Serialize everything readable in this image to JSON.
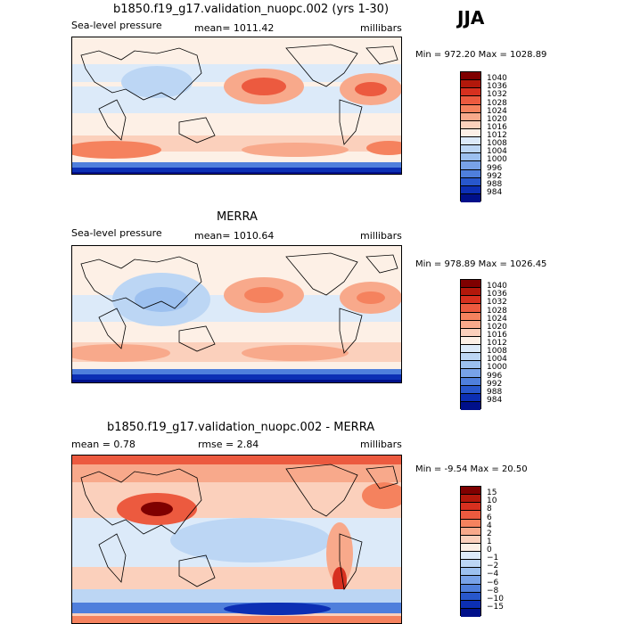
{
  "season": "JJA",
  "panels": [
    {
      "title": "b1850.f19_g17.validation_nuopc.002 (yrs 1-30)",
      "left_label": "Sea-level pressure",
      "stat_label": "mean= 1011.42",
      "units": "millibars",
      "minmax": "Min = 972.20 Max = 1028.89",
      "map_name": "model-slp-map",
      "colorbar": {
        "labels": [
          "1040",
          "1036",
          "1032",
          "1028",
          "1024",
          "1020",
          "1016",
          "1012",
          "1008",
          "1004",
          "1000",
          "996",
          "992",
          "988",
          "984"
        ],
        "colors": [
          "#7f0000",
          "#b2180b",
          "#d7301f",
          "#ec5a3f",
          "#f5825e",
          "#f8a98b",
          "#fbd0bc",
          "#fdf0e6",
          "#dceaf9",
          "#bcd6f4",
          "#9cc0ef",
          "#78a2e8",
          "#4f7fdc",
          "#2857cc",
          "#0c2fb4",
          "#00108a"
        ]
      }
    },
    {
      "title": "MERRA",
      "left_label": "Sea-level pressure",
      "stat_label": "mean= 1010.64",
      "units": "millibars",
      "minmax": "Min = 978.89 Max = 1026.45",
      "map_name": "merra-slp-map",
      "colorbar": {
        "labels": [
          "1040",
          "1036",
          "1032",
          "1028",
          "1024",
          "1020",
          "1016",
          "1012",
          "1008",
          "1004",
          "1000",
          "996",
          "992",
          "988",
          "984"
        ],
        "colors": [
          "#7f0000",
          "#b2180b",
          "#d7301f",
          "#ec5a3f",
          "#f5825e",
          "#f8a98b",
          "#fbd0bc",
          "#fdf0e6",
          "#dceaf9",
          "#bcd6f4",
          "#9cc0ef",
          "#78a2e8",
          "#4f7fdc",
          "#2857cc",
          "#0c2fb4",
          "#00108a"
        ]
      }
    },
    {
      "title": "b1850.f19_g17.validation_nuopc.002 - MERRA",
      "left_label": "mean =    0.78",
      "stat_label": "rmse =    2.84",
      "units": "millibars",
      "minmax": "Min =  -9.54 Max =  20.50",
      "map_name": "difference-slp-map",
      "colorbar": {
        "labels": [
          "15",
          "10",
          "8",
          "6",
          "4",
          "2",
          "1",
          "0",
          "−1",
          "−2",
          "−4",
          "−6",
          "−8",
          "−10",
          "−15"
        ],
        "colors": [
          "#7f0000",
          "#b2180b",
          "#d7301f",
          "#ec5a3f",
          "#f5825e",
          "#f8a98b",
          "#fbd0bc",
          "#fdf0e6",
          "#dceaf9",
          "#bcd6f4",
          "#9cc0ef",
          "#78a2e8",
          "#4f7fdc",
          "#2857cc",
          "#0c2fb4",
          "#00108a"
        ]
      }
    }
  ]
}
